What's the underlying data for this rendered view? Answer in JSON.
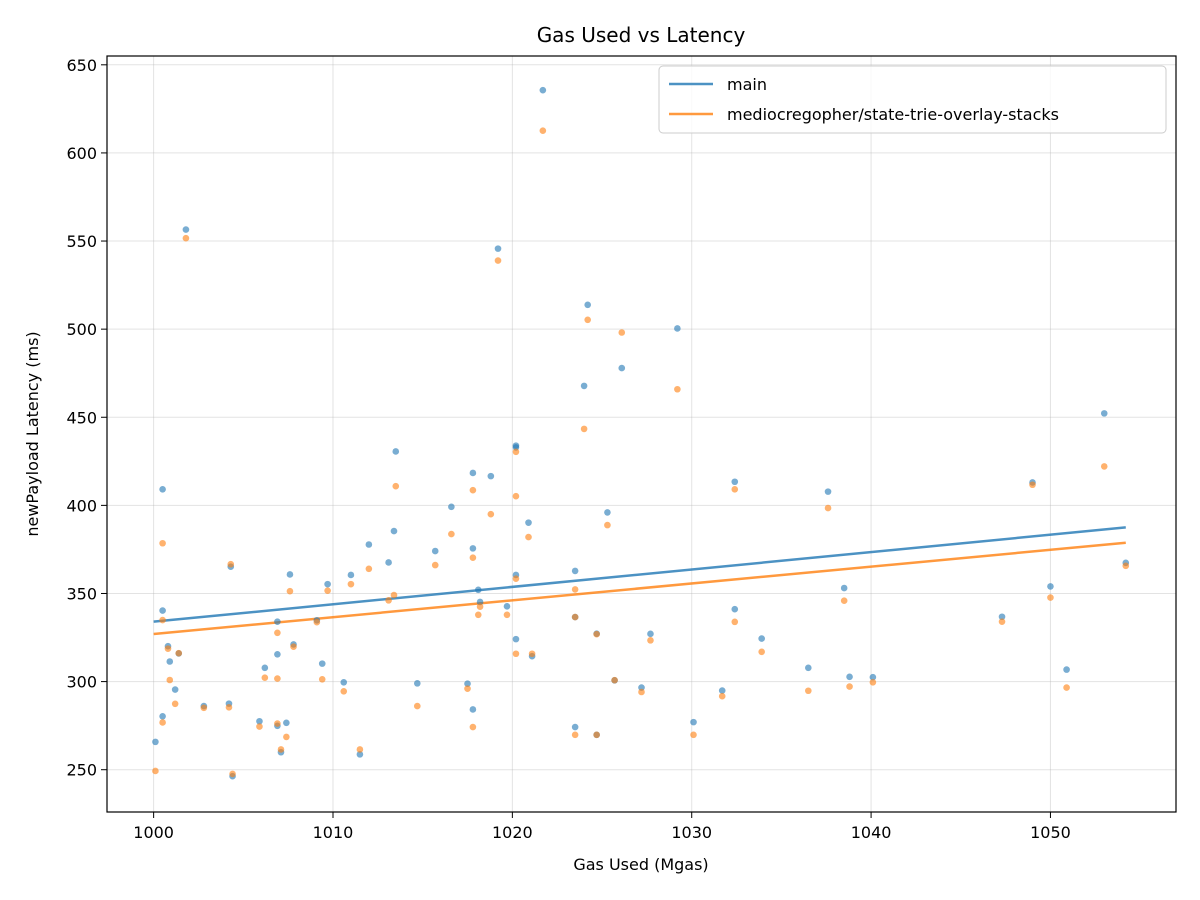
{
  "chart_data": {
    "type": "scatter",
    "title": "Gas Used vs Latency",
    "xlabel": "Gas Used (Mgas)",
    "ylabel": "newPayload Latency (ms)",
    "xlim": [
      997.4,
      1057.0
    ],
    "ylim": [
      226,
      655
    ],
    "xticks": [
      1000,
      1010,
      1020,
      1030,
      1040,
      1050
    ],
    "yticks": [
      250,
      300,
      350,
      400,
      450,
      500,
      550,
      600,
      650
    ],
    "grid": true,
    "legend_position": "top-right",
    "series": [
      {
        "name": "main",
        "color": "#1f77b4",
        "trend": [
          [
            1000.0,
            334.0
          ],
          [
            1054.2,
            387.5
          ]
        ],
        "points": [
          [
            1000.1,
            265.8
          ],
          [
            1000.5,
            409.1
          ],
          [
            1000.5,
            340.3
          ],
          [
            1000.5,
            280.3
          ],
          [
            1000.8,
            320.1
          ],
          [
            1000.9,
            311.4
          ],
          [
            1001.2,
            295.5
          ],
          [
            1001.4,
            316.0
          ],
          [
            1001.8,
            556.5
          ],
          [
            1002.8,
            286.1
          ],
          [
            1004.2,
            287.5
          ],
          [
            1004.3,
            365.2
          ],
          [
            1004.4,
            246.3
          ],
          [
            1005.9,
            277.5
          ],
          [
            1006.2,
            307.8
          ],
          [
            1006.9,
            334.0
          ],
          [
            1006.9,
            315.5
          ],
          [
            1006.9,
            274.9
          ],
          [
            1007.1,
            259.9
          ],
          [
            1007.4,
            276.6
          ],
          [
            1007.6,
            360.8
          ],
          [
            1007.8,
            321.1
          ],
          [
            1009.1,
            334.8
          ],
          [
            1009.4,
            310.2
          ],
          [
            1009.7,
            355.3
          ],
          [
            1010.6,
            299.6
          ],
          [
            1011.0,
            360.5
          ],
          [
            1011.5,
            258.7
          ],
          [
            1012.0,
            377.8
          ],
          [
            1013.1,
            367.6
          ],
          [
            1013.4,
            385.4
          ],
          [
            1013.5,
            430.6
          ],
          [
            1014.7,
            299.0
          ],
          [
            1015.7,
            374.1
          ],
          [
            1016.6,
            399.2
          ],
          [
            1017.5,
            298.8
          ],
          [
            1017.8,
            418.4
          ],
          [
            1017.8,
            375.6
          ],
          [
            1017.8,
            284.2
          ],
          [
            1018.1,
            352.1
          ],
          [
            1018.2,
            345.2
          ],
          [
            1018.8,
            416.6
          ],
          [
            1019.2,
            545.7
          ],
          [
            1019.7,
            342.7
          ],
          [
            1020.2,
            433.9
          ],
          [
            1020.2,
            432.9
          ],
          [
            1020.2,
            360.5
          ],
          [
            1020.2,
            324.1
          ],
          [
            1020.9,
            390.2
          ],
          [
            1021.1,
            314.4
          ],
          [
            1021.7,
            635.6
          ],
          [
            1023.5,
            362.8
          ],
          [
            1023.5,
            336.6
          ],
          [
            1023.5,
            274.2
          ],
          [
            1024.0,
            467.8
          ],
          [
            1024.2,
            513.8
          ],
          [
            1024.7,
            327.2
          ],
          [
            1024.7,
            269.8
          ],
          [
            1025.3,
            396.0
          ],
          [
            1025.7,
            300.7
          ],
          [
            1026.1,
            477.9
          ],
          [
            1027.2,
            296.6
          ],
          [
            1027.7,
            327.1
          ],
          [
            1029.2,
            500.4
          ],
          [
            1030.1,
            277.0
          ],
          [
            1031.7,
            294.9
          ],
          [
            1032.4,
            413.4
          ],
          [
            1032.4,
            341.1
          ],
          [
            1033.9,
            324.4
          ],
          [
            1036.5,
            307.8
          ],
          [
            1037.6,
            407.8
          ],
          [
            1038.5,
            353.1
          ],
          [
            1038.8,
            302.7
          ],
          [
            1040.1,
            302.5
          ],
          [
            1047.3,
            336.8
          ],
          [
            1049.0,
            413.0
          ],
          [
            1050.0,
            354.0
          ],
          [
            1050.9,
            306.8
          ],
          [
            1053.0,
            452.2
          ],
          [
            1054.2,
            367.4
          ]
        ]
      },
      {
        "name": "mediocregopher/state-trie-overlay-stacks",
        "color": "#ff7f0e",
        "trend": [
          [
            1000.0,
            327.0
          ],
          [
            1054.2,
            378.8
          ]
        ],
        "points": [
          [
            1000.1,
            249.3
          ],
          [
            1000.5,
            378.5
          ],
          [
            1000.5,
            334.9
          ],
          [
            1000.5,
            276.8
          ],
          [
            1000.8,
            318.7
          ],
          [
            1000.9,
            300.9
          ],
          [
            1001.2,
            287.4
          ],
          [
            1001.4,
            316.1
          ],
          [
            1001.8,
            551.6
          ],
          [
            1002.8,
            285.1
          ],
          [
            1004.2,
            285.4
          ],
          [
            1004.3,
            366.6
          ],
          [
            1004.4,
            247.6
          ],
          [
            1005.9,
            274.5
          ],
          [
            1006.2,
            302.2
          ],
          [
            1006.9,
            327.7
          ],
          [
            1006.9,
            301.7
          ],
          [
            1006.9,
            276.2
          ],
          [
            1007.1,
            261.5
          ],
          [
            1007.4,
            268.6
          ],
          [
            1007.6,
            351.3
          ],
          [
            1007.8,
            319.8
          ],
          [
            1009.1,
            333.7
          ],
          [
            1009.4,
            301.3
          ],
          [
            1009.7,
            351.6
          ],
          [
            1010.6,
            294.5
          ],
          [
            1011.0,
            355.3
          ],
          [
            1011.5,
            261.5
          ],
          [
            1012.0,
            364.0
          ],
          [
            1013.1,
            346.1
          ],
          [
            1013.4,
            349.1
          ],
          [
            1013.5,
            410.9
          ],
          [
            1014.7,
            286.1
          ],
          [
            1015.7,
            366.1
          ],
          [
            1016.6,
            383.7
          ],
          [
            1017.5,
            296.0
          ],
          [
            1017.8,
            408.6
          ],
          [
            1017.8,
            370.3
          ],
          [
            1017.8,
            274.2
          ],
          [
            1018.1,
            337.9
          ],
          [
            1018.2,
            342.5
          ],
          [
            1018.8,
            395.0
          ],
          [
            1019.2,
            538.9
          ],
          [
            1019.7,
            337.9
          ],
          [
            1020.2,
            430.4
          ],
          [
            1020.2,
            405.2
          ],
          [
            1020.2,
            358.4
          ],
          [
            1020.2,
            315.8
          ],
          [
            1020.9,
            382.0
          ],
          [
            1021.1,
            315.8
          ],
          [
            1021.7,
            612.6
          ],
          [
            1023.5,
            352.3
          ],
          [
            1023.5,
            336.6
          ],
          [
            1023.5,
            269.8
          ],
          [
            1024.0,
            443.4
          ],
          [
            1024.2,
            505.3
          ],
          [
            1024.7,
            326.9
          ],
          [
            1024.7,
            269.8
          ],
          [
            1025.3,
            388.8
          ],
          [
            1025.7,
            300.8
          ],
          [
            1026.1,
            498.1
          ],
          [
            1027.2,
            294.1
          ],
          [
            1027.7,
            323.4
          ],
          [
            1029.2,
            465.9
          ],
          [
            1030.1,
            269.8
          ],
          [
            1031.7,
            291.7
          ],
          [
            1032.4,
            409.1
          ],
          [
            1032.4,
            333.9
          ],
          [
            1033.9,
            316.9
          ],
          [
            1036.5,
            294.8
          ],
          [
            1037.6,
            398.5
          ],
          [
            1038.5,
            345.9
          ],
          [
            1038.8,
            297.2
          ],
          [
            1040.1,
            299.6
          ],
          [
            1047.3,
            334.0
          ],
          [
            1049.0,
            411.7
          ],
          [
            1050.0,
            347.7
          ],
          [
            1050.9,
            296.6
          ],
          [
            1053.0,
            422.1
          ],
          [
            1054.2,
            365.7
          ]
        ]
      }
    ]
  }
}
